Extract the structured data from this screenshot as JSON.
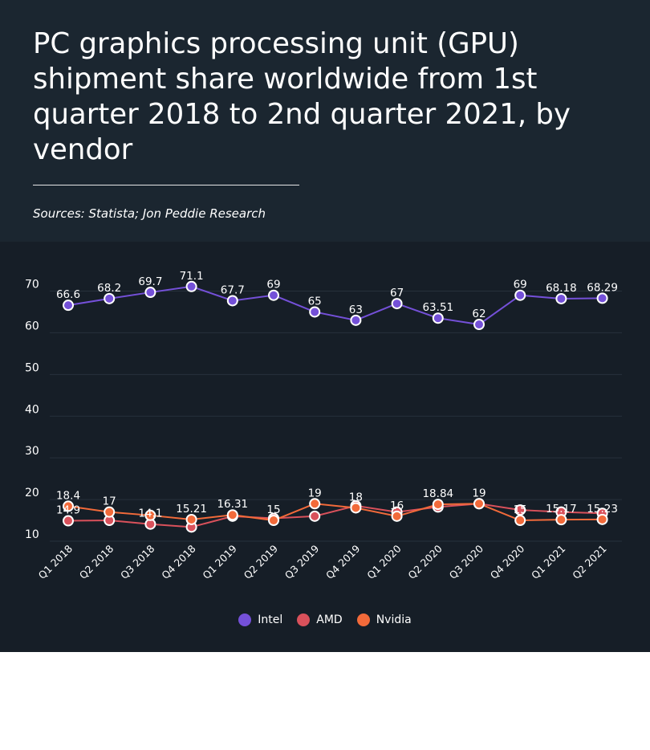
{
  "title": "PC graphics processing unit (GPU) shipment share worldwide from 1st quarter 2018 to 2nd quarter 2021, by vendor",
  "source": "Sources: Statista; Jon Peddie Research",
  "colors": {
    "Intel": "#7450d8",
    "AMD": "#d9515b",
    "Nvidia": "#f26a3a"
  },
  "chart_data": {
    "type": "line",
    "categories": [
      "Q1 2018",
      "Q2 2018",
      "Q3 2018",
      "Q4 2018",
      "Q1 2019",
      "Q2 2019",
      "Q3 2019",
      "Q4 2019",
      "Q1 2020",
      "Q2 2020",
      "Q3 2020",
      "Q4 2020",
      "Q1 2021",
      "Q2 2021"
    ],
    "ylim": [
      10,
      72
    ],
    "yticks": [
      10,
      20,
      30,
      40,
      50,
      60,
      70
    ],
    "grid": true,
    "legend": "bottom",
    "series": [
      {
        "name": "Intel",
        "values": [
          66.6,
          68.2,
          69.7,
          71.1,
          67.7,
          69,
          65,
          63,
          67,
          63.51,
          62,
          69,
          68.18,
          68.29
        ],
        "labels": [
          "66.6",
          "68.2",
          "69.7",
          "71.1",
          "67.7",
          "69",
          "65",
          "63",
          "67",
          "63.51",
          "62",
          "69",
          "68.18",
          "68.29"
        ]
      },
      {
        "name": "AMD",
        "values": [
          14.9,
          15,
          14.1,
          13.4,
          16,
          15.5,
          16,
          18.5,
          17,
          18.2,
          19,
          17.5,
          17,
          16.7
        ],
        "labels": [
          "14.9",
          "",
          "14.1",
          "",
          "",
          "",
          "",
          "",
          "",
          "",
          "",
          "",
          "",
          ""
        ]
      },
      {
        "name": "Nvidia",
        "values": [
          18.4,
          17,
          16.2,
          15.21,
          16.31,
          15,
          19,
          18,
          16,
          18.84,
          19,
          15,
          15.17,
          15.23
        ],
        "labels": [
          "18.4",
          "17",
          "",
          "15.21",
          "16.31",
          "15",
          "19",
          "18",
          "16",
          "18.84",
          "19",
          "15",
          "15.17",
          "15.23"
        ]
      }
    ]
  }
}
